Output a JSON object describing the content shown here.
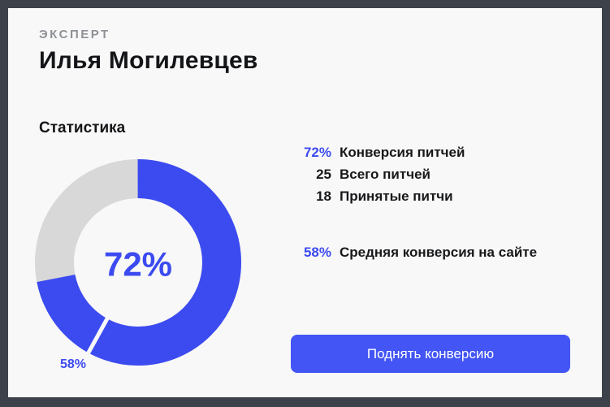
{
  "frame": {
    "bg": "#3d424a",
    "card_bg": "#f8f8f8"
  },
  "header": {
    "eyebrow": "ЭКСПЕРТ",
    "title": "Илья Могилевцев"
  },
  "stats": {
    "section_title": "Статистика",
    "rows": [
      {
        "value": "72%",
        "label": "Конверсия питчей"
      },
      {
        "value": "25",
        "label": "Всего питчей"
      },
      {
        "value": "18",
        "label": "Принятые питчи"
      }
    ],
    "site_average": {
      "value": "58%",
      "label": "Средняя конверсия на сайте"
    }
  },
  "chart_data": {
    "type": "donut",
    "title": "Конверсия питчей",
    "percent": 72,
    "center_label": "72%",
    "marker_percent": 58,
    "marker_label": "58%",
    "legend": [
      {
        "label": "Конверсия питчей",
        "value": 72
      },
      {
        "label": "Средняя конверсия на сайте",
        "value": 58
      }
    ],
    "colors": {
      "primary": "#3c4bf0",
      "track": "#d8d8d8",
      "center_text": "#3c4bf0"
    }
  },
  "cta": {
    "label": "Поднять конверсию",
    "bg": "#4355f4"
  },
  "colors": {
    "accent": "#3c4bf0"
  }
}
